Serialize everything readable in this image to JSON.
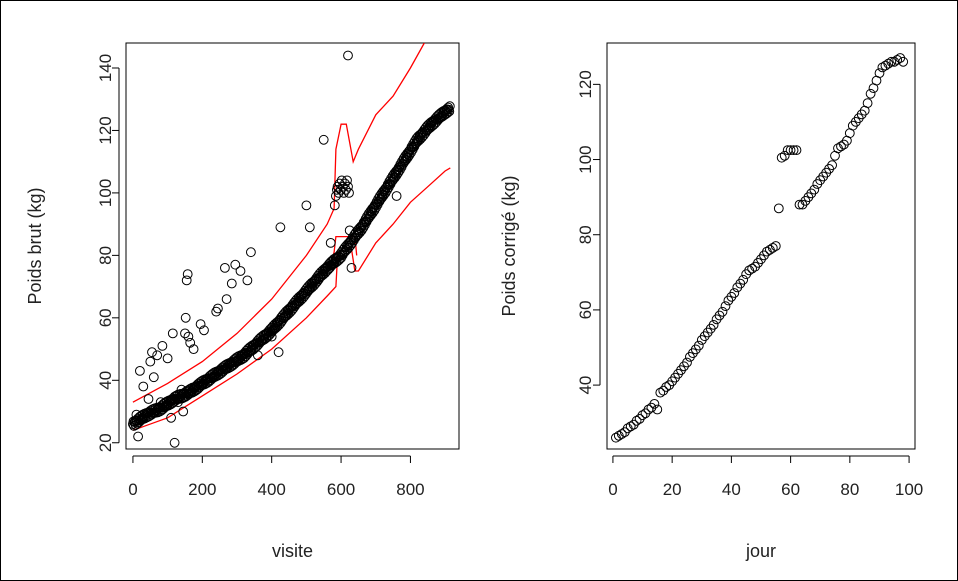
{
  "chart_data": [
    {
      "type": "scatter",
      "title": "",
      "xlabel": "visite",
      "ylabel": "Poids brut (kg)",
      "xlim": [
        -20,
        940
      ],
      "ylim": [
        18,
        148
      ],
      "xticks": [
        0,
        200,
        400,
        600,
        800
      ],
      "yticks": [
        20,
        40,
        60,
        80,
        100,
        120,
        140
      ],
      "grid": false,
      "legend": "none",
      "point_color": "#000000",
      "band_color": "#ff0000",
      "main_trend": [
        [
          0,
          26
        ],
        [
          40,
          29
        ],
        [
          80,
          31
        ],
        [
          120,
          34
        ],
        [
          160,
          36
        ],
        [
          200,
          39
        ],
        [
          240,
          42
        ],
        [
          280,
          45
        ],
        [
          320,
          48
        ],
        [
          360,
          52
        ],
        [
          400,
          56
        ],
        [
          440,
          61
        ],
        [
          480,
          66
        ],
        [
          520,
          71
        ],
        [
          560,
          76
        ],
        [
          600,
          80
        ],
        [
          620,
          83
        ],
        [
          660,
          89
        ],
        [
          700,
          96
        ],
        [
          740,
          103
        ],
        [
          780,
          110
        ],
        [
          820,
          117
        ],
        [
          860,
          122
        ],
        [
          900,
          126
        ],
        [
          915,
          127
        ]
      ],
      "cluster": [
        [
          582,
          96
        ],
        [
          585,
          99
        ],
        [
          588,
          101
        ],
        [
          590,
          102
        ],
        [
          593,
          100
        ],
        [
          596,
          103
        ],
        [
          599,
          101
        ],
        [
          602,
          104
        ],
        [
          605,
          102
        ],
        [
          608,
          100
        ],
        [
          611,
          103
        ],
        [
          614,
          101
        ],
        [
          617,
          104
        ],
        [
          620,
          102
        ],
        [
          623,
          100
        ]
      ],
      "outliers": [
        [
          10,
          29
        ],
        [
          15,
          22
        ],
        [
          20,
          43
        ],
        [
          30,
          38
        ],
        [
          45,
          34
        ],
        [
          50,
          46
        ],
        [
          55,
          49
        ],
        [
          60,
          41
        ],
        [
          70,
          48
        ],
        [
          80,
          33
        ],
        [
          85,
          51
        ],
        [
          100,
          47
        ],
        [
          110,
          28
        ],
        [
          115,
          55
        ],
        [
          120,
          20
        ],
        [
          130,
          33
        ],
        [
          140,
          37
        ],
        [
          145,
          30
        ],
        [
          150,
          55
        ],
        [
          152,
          60
        ],
        [
          155,
          72
        ],
        [
          158,
          74
        ],
        [
          160,
          54
        ],
        [
          165,
          52
        ],
        [
          175,
          50
        ],
        [
          195,
          58
        ],
        [
          205,
          56
        ],
        [
          240,
          62
        ],
        [
          245,
          63
        ],
        [
          265,
          76
        ],
        [
          270,
          66
        ],
        [
          285,
          71
        ],
        [
          295,
          77
        ],
        [
          310,
          75
        ],
        [
          330,
          72
        ],
        [
          340,
          81
        ],
        [
          360,
          48
        ],
        [
          400,
          54
        ],
        [
          420,
          49
        ],
        [
          425,
          89
        ],
        [
          500,
          96
        ],
        [
          510,
          89
        ],
        [
          550,
          117
        ],
        [
          570,
          84
        ],
        [
          575,
          78
        ],
        [
          620,
          144
        ],
        [
          625,
          88
        ],
        [
          630,
          76
        ],
        [
          760,
          99
        ]
      ],
      "upper_band": [
        [
          0,
          33
        ],
        [
          100,
          39
        ],
        [
          200,
          46
        ],
        [
          300,
          55
        ],
        [
          400,
          66
        ],
        [
          500,
          80
        ],
        [
          560,
          90
        ],
        [
          580,
          95
        ],
        [
          585,
          114
        ],
        [
          600,
          122
        ],
        [
          615,
          122
        ],
        [
          635,
          110
        ],
        [
          650,
          114
        ],
        [
          700,
          125
        ],
        [
          750,
          131
        ],
        [
          800,
          140
        ],
        [
          840,
          148
        ]
      ],
      "lower_band": [
        [
          0,
          24
        ],
        [
          100,
          28
        ],
        [
          200,
          35
        ],
        [
          300,
          42
        ],
        [
          400,
          50
        ],
        [
          500,
          60
        ],
        [
          560,
          67
        ],
        [
          585,
          70
        ],
        [
          590,
          80
        ],
        [
          610,
          83
        ],
        [
          630,
          82
        ],
        [
          640,
          75
        ],
        [
          650,
          75
        ],
        [
          700,
          84
        ],
        [
          750,
          90
        ],
        [
          800,
          97
        ],
        [
          850,
          102
        ],
        [
          900,
          107
        ],
        [
          915,
          108
        ]
      ],
      "inner_step": [
        [
          575,
          79
        ],
        [
          580,
          81
        ],
        [
          585,
          86
        ],
        [
          640,
          86
        ],
        [
          645,
          80
        ]
      ]
    },
    {
      "type": "scatter",
      "title": "",
      "xlabel": "jour",
      "ylabel": "Poids corrigé (kg)",
      "xlim": [
        -2,
        102
      ],
      "ylim": [
        23,
        131
      ],
      "xticks": [
        0,
        20,
        40,
        60,
        80,
        100
      ],
      "yticks": [
        40,
        60,
        80,
        100,
        120
      ],
      "grid": false,
      "legend": "none",
      "point_color": "#000000",
      "points": [
        [
          1,
          26
        ],
        [
          2,
          26.5
        ],
        [
          3,
          27
        ],
        [
          4,
          27.5
        ],
        [
          5,
          28.5
        ],
        [
          6,
          29
        ],
        [
          7,
          29.5
        ],
        [
          8,
          30.5
        ],
        [
          9,
          31
        ],
        [
          10,
          32
        ],
        [
          11,
          32.5
        ],
        [
          12,
          33.5
        ],
        [
          13,
          34
        ],
        [
          14,
          35
        ],
        [
          15,
          33.5
        ],
        [
          16,
          38
        ],
        [
          17,
          38.5
        ],
        [
          18,
          39.5
        ],
        [
          19,
          40
        ],
        [
          20,
          41
        ],
        [
          21,
          42
        ],
        [
          22,
          43
        ],
        [
          23,
          44
        ],
        [
          24,
          45
        ],
        [
          25,
          46
        ],
        [
          26,
          47.5
        ],
        [
          27,
          48.5
        ],
        [
          28,
          49.5
        ],
        [
          29,
          50.5
        ],
        [
          30,
          52
        ],
        [
          31,
          53
        ],
        [
          32,
          54
        ],
        [
          33,
          55
        ],
        [
          34,
          56
        ],
        [
          35,
          57.5
        ],
        [
          36,
          58.5
        ],
        [
          37,
          59.5
        ],
        [
          38,
          61
        ],
        [
          39,
          62.5
        ],
        [
          40,
          63.5
        ],
        [
          41,
          64.5
        ],
        [
          42,
          66
        ],
        [
          43,
          67
        ],
        [
          44,
          68
        ],
        [
          45,
          69.5
        ],
        [
          46,
          70.5
        ],
        [
          47,
          71
        ],
        [
          48,
          71.5
        ],
        [
          49,
          72.5
        ],
        [
          50,
          73.5
        ],
        [
          51,
          74.5
        ],
        [
          52,
          75.5
        ],
        [
          53,
          76
        ],
        [
          54,
          76.5
        ],
        [
          55,
          77
        ],
        [
          56,
          87
        ],
        [
          57,
          100.5
        ],
        [
          58,
          101
        ],
        [
          59,
          102.5
        ],
        [
          60,
          102.5
        ],
        [
          61,
          102.5
        ],
        [
          62,
          102.5
        ],
        [
          63,
          88
        ],
        [
          64,
          88
        ],
        [
          65,
          89
        ],
        [
          66,
          90
        ],
        [
          67,
          91
        ],
        [
          68,
          92
        ],
        [
          69,
          93.5
        ],
        [
          70,
          94.5
        ],
        [
          71,
          95.5
        ],
        [
          72,
          96.5
        ],
        [
          73,
          97.5
        ],
        [
          74,
          98.5
        ],
        [
          75,
          101
        ],
        [
          76,
          103
        ],
        [
          77,
          103.5
        ],
        [
          78,
          104
        ],
        [
          79,
          105
        ],
        [
          80,
          107
        ],
        [
          81,
          109
        ],
        [
          82,
          110
        ],
        [
          83,
          111
        ],
        [
          84,
          112
        ],
        [
          85,
          113
        ],
        [
          86,
          115
        ],
        [
          87,
          117.5
        ],
        [
          88,
          119
        ],
        [
          89,
          121
        ],
        [
          90,
          123
        ],
        [
          91,
          124.5
        ],
        [
          92,
          125
        ],
        [
          93,
          125.5
        ],
        [
          94,
          126
        ],
        [
          95,
          126
        ],
        [
          96,
          126.5
        ],
        [
          97,
          127
        ],
        [
          98,
          126
        ]
      ]
    }
  ]
}
